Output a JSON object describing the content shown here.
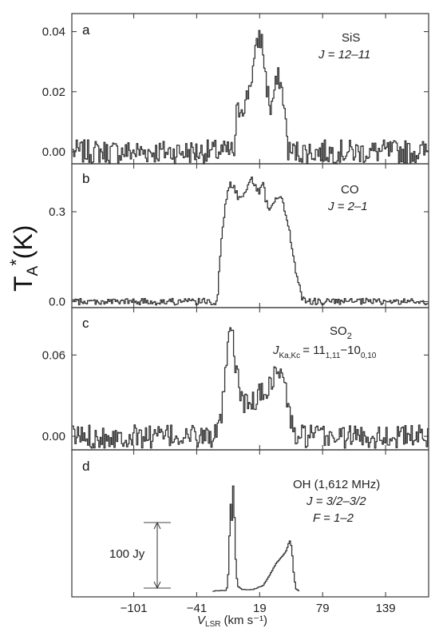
{
  "chart_data": {
    "type": "line",
    "x_axis": {
      "ticks": [
        -101,
        -41,
        19,
        79,
        139
      ],
      "tick_labels": [
        "−101",
        "−41",
        "19",
        "79",
        "139"
      ],
      "label_main": "V",
      "label_sub": "LSR",
      "label_units": "(km s⁻¹)",
      "xlim": [
        -160,
        180
      ]
    },
    "y_axis_label": {
      "main": "T",
      "sub": "A",
      "sup": "*",
      "rest": "(K)"
    },
    "panels": [
      {
        "letter": "a",
        "molecule": "SiS",
        "transition": "J = 12–11",
        "ylim": [
          -0.004,
          0.046
        ],
        "yticks": [
          0.0,
          0.02,
          0.04
        ],
        "ytick_labels": [
          "0.00",
          "0.02",
          "0.04"
        ],
        "noise": 0.0025,
        "profile": [
          {
            "x": -5,
            "y": 0.0
          },
          {
            "x": -4,
            "y": 0.012
          },
          {
            "x": 0,
            "y": 0.015
          },
          {
            "x": 5,
            "y": 0.016
          },
          {
            "x": 10,
            "y": 0.024
          },
          {
            "x": 15,
            "y": 0.033
          },
          {
            "x": 18,
            "y": 0.039
          },
          {
            "x": 21,
            "y": 0.036
          },
          {
            "x": 25,
            "y": 0.022
          },
          {
            "x": 29,
            "y": 0.014
          },
          {
            "x": 33,
            "y": 0.021
          },
          {
            "x": 37,
            "y": 0.025
          },
          {
            "x": 41,
            "y": 0.018
          },
          {
            "x": 44,
            "y": 0.006
          },
          {
            "x": 46,
            "y": 0.0
          }
        ]
      },
      {
        "letter": "b",
        "molecule": "CO",
        "transition": "J = 2–1",
        "ylim": [
          -0.02,
          0.46
        ],
        "yticks": [
          0.0,
          0.3
        ],
        "ytick_labels": [
          "0.0",
          "0.3"
        ],
        "noise": 0.007,
        "profile": [
          {
            "x": -22,
            "y": 0.0
          },
          {
            "x": -18,
            "y": 0.21
          },
          {
            "x": -14,
            "y": 0.33
          },
          {
            "x": -10,
            "y": 0.4
          },
          {
            "x": -6,
            "y": 0.38
          },
          {
            "x": -1,
            "y": 0.34
          },
          {
            "x": 4,
            "y": 0.37
          },
          {
            "x": 10,
            "y": 0.41
          },
          {
            "x": 14,
            "y": 0.39
          },
          {
            "x": 18,
            "y": 0.36
          },
          {
            "x": 22,
            "y": 0.41
          },
          {
            "x": 24,
            "y": 0.34
          },
          {
            "x": 28,
            "y": 0.31
          },
          {
            "x": 34,
            "y": 0.35
          },
          {
            "x": 40,
            "y": 0.34
          },
          {
            "x": 46,
            "y": 0.25
          },
          {
            "x": 52,
            "y": 0.12
          },
          {
            "x": 58,
            "y": 0.02
          },
          {
            "x": 62,
            "y": 0.0
          }
        ]
      },
      {
        "letter": "c",
        "molecule": "SO",
        "molecule_sub": "2",
        "transition_lhs": "J",
        "transition_lhs_sub": "Ka,Kc",
        "transition_rhs": "= 11",
        "transition_rhs_sub1": "1,11",
        "transition_rhs_mid": "−10",
        "transition_rhs_sub2": "0,10",
        "ylim": [
          -0.01,
          0.095
        ],
        "yticks": [
          0.0,
          0.06
        ],
        "ytick_labels": [
          "0.00",
          "0.06"
        ],
        "noise": 0.0055,
        "profile": [
          {
            "x": -22,
            "y": 0.0
          },
          {
            "x": -18,
            "y": 0.015
          },
          {
            "x": -14,
            "y": 0.045
          },
          {
            "x": -11,
            "y": 0.071
          },
          {
            "x": -8,
            "y": 0.078
          },
          {
            "x": -5,
            "y": 0.055
          },
          {
            "x": 0,
            "y": 0.032
          },
          {
            "x": 6,
            "y": 0.022
          },
          {
            "x": 12,
            "y": 0.025
          },
          {
            "x": 18,
            "y": 0.031
          },
          {
            "x": 24,
            "y": 0.033
          },
          {
            "x": 30,
            "y": 0.042
          },
          {
            "x": 36,
            "y": 0.048
          },
          {
            "x": 40,
            "y": 0.046
          },
          {
            "x": 44,
            "y": 0.03
          },
          {
            "x": 48,
            "y": 0.012
          },
          {
            "x": 52,
            "y": 0.0
          }
        ]
      },
      {
        "letter": "d",
        "molecule": "OH (1,612 MHz)",
        "transition": "J = 3/2–3/2",
        "transition2": "F = 1–2",
        "scale_bar_label": "100 Jy",
        "scale_bar_value": 100,
        "ylim": [
          -8,
          195
        ],
        "noise": 0.3,
        "profile": [
          {
            "x": -26,
            "y": 0.0
          },
          {
            "x": -14,
            "y": 1.0
          },
          {
            "x": -12,
            "y": 6.0
          },
          {
            "x": -10.5,
            "y": 70.0
          },
          {
            "x": -9.5,
            "y": 135.0
          },
          {
            "x": -8.5,
            "y": 85.0
          },
          {
            "x": -7.5,
            "y": 110.0
          },
          {
            "x": -6.5,
            "y": 160.0
          },
          {
            "x": -5.5,
            "y": 95.0
          },
          {
            "x": -4,
            "y": 25.0
          },
          {
            "x": -2,
            "y": 6.0
          },
          {
            "x": 2,
            "y": 2.0
          },
          {
            "x": 12,
            "y": 2.0
          },
          {
            "x": 22,
            "y": 8.0
          },
          {
            "x": 28,
            "y": 22.0
          },
          {
            "x": 34,
            "y": 38.0
          },
          {
            "x": 40,
            "y": 48.0
          },
          {
            "x": 44,
            "y": 56.0
          },
          {
            "x": 47,
            "y": 70.0
          },
          {
            "x": 49,
            "y": 60.0
          },
          {
            "x": 51,
            "y": 22.0
          },
          {
            "x": 53,
            "y": 3.0
          },
          {
            "x": 56,
            "y": 0.0
          }
        ]
      }
    ]
  }
}
